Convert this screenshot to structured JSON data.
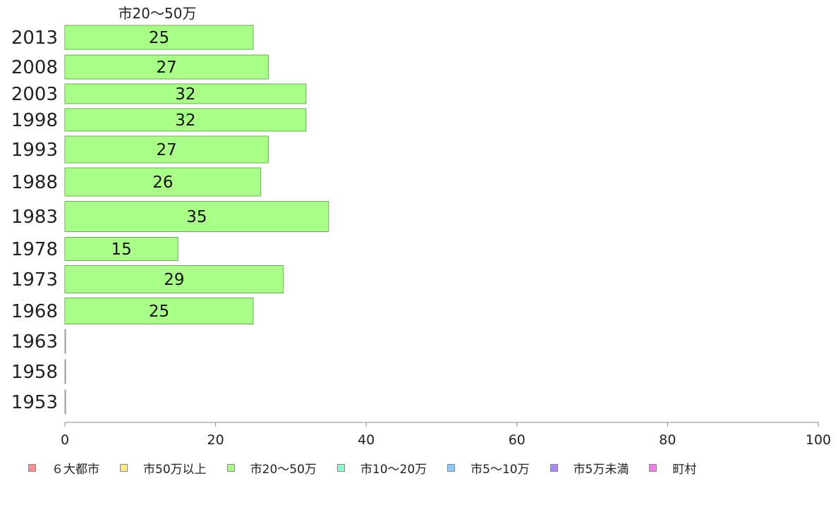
{
  "chart_data": {
    "type": "bar",
    "orientation": "horizontal",
    "series_label": "市20〜50万",
    "categories": [
      "2013",
      "2008",
      "2003",
      "1998",
      "1993",
      "1988",
      "1983",
      "1978",
      "1973",
      "1968",
      "1963",
      "1958",
      "1953"
    ],
    "values": [
      25,
      27,
      32,
      32,
      27,
      26,
      35,
      15,
      29,
      25,
      0,
      0,
      0
    ],
    "data_labels": [
      "25",
      "27",
      "32",
      "32",
      "27",
      "26",
      "35",
      "15",
      "29",
      "25",
      "",
      "",
      ""
    ],
    "xlim": [
      0,
      100
    ],
    "xticks": [
      "0",
      "20",
      "40",
      "60",
      "80",
      "100"
    ],
    "grid": false,
    "bar_color": "#aaff88",
    "legend_position": "bottom",
    "legend": [
      {
        "label": "６大都市",
        "color": "#ff8f8f"
      },
      {
        "label": "市50万以上",
        "color": "#ffe88a"
      },
      {
        "label": "市20〜50万",
        "color": "#aaff88"
      },
      {
        "label": "市10〜20万",
        "color": "#88ffcc"
      },
      {
        "label": "市5〜10万",
        "color": "#88ccff"
      },
      {
        "label": "市5万未満",
        "color": "#aa88ff"
      },
      {
        "label": "町村",
        "color": "#ff77ee"
      }
    ]
  }
}
